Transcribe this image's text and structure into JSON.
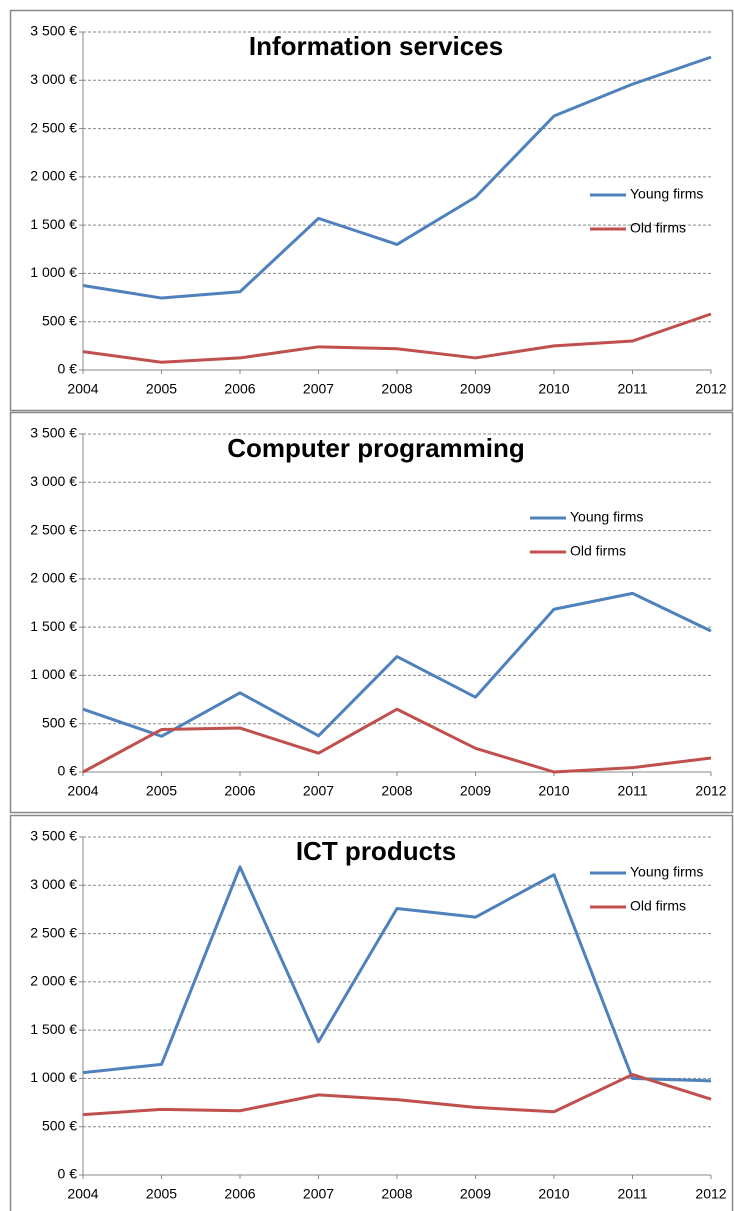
{
  "chart_data": [
    {
      "type": "line",
      "title": "Information services",
      "categories": [
        "2004",
        "2005",
        "2006",
        "2007",
        "2008",
        "2009",
        "2010",
        "2011",
        "2012"
      ],
      "series": [
        {
          "name": "Young firms",
          "color": "#4f81bd",
          "values": [
            875,
            745,
            810,
            1570,
            1300,
            1790,
            2630,
            2960,
            3240
          ]
        },
        {
          "name": "Old firms",
          "color": "#c0504d",
          "values": [
            190,
            80,
            125,
            240,
            220,
            125,
            250,
            300,
            580
          ]
        }
      ],
      "ylim": [
        0,
        3500
      ],
      "yticks": [
        {
          "value": 0,
          "label": "0 €"
        },
        {
          "value": 500,
          "label": "500 €"
        },
        {
          "value": 1000,
          "label": "1 000 €"
        },
        {
          "value": 1500,
          "label": "1 500 €"
        },
        {
          "value": 2000,
          "label": "2 000 €"
        },
        {
          "value": 2500,
          "label": "2 500 €"
        },
        {
          "value": 3000,
          "label": "3 000 €"
        },
        {
          "value": 3500,
          "label": "3 500 €"
        }
      ],
      "grid": true,
      "legend": "center right"
    },
    {
      "type": "line",
      "title": "Computer programming",
      "categories": [
        "2004",
        "2005",
        "2006",
        "2007",
        "2008",
        "2009",
        "2010",
        "2011",
        "2012"
      ],
      "series": [
        {
          "name": "Young firms",
          "color": "#4f81bd",
          "values": [
            650,
            370,
            820,
            375,
            1195,
            775,
            1685,
            1850,
            1460
          ]
        },
        {
          "name": "Old firms",
          "color": "#c0504d",
          "values": [
            0,
            440,
            455,
            195,
            650,
            245,
            0,
            45,
            145
          ]
        }
      ],
      "ylim": [
        0,
        3500
      ],
      "yticks": [
        {
          "value": 0,
          "label": "0 €"
        },
        {
          "value": 500,
          "label": "500 €"
        },
        {
          "value": 1000,
          "label": "1 000 €"
        },
        {
          "value": 1500,
          "label": "1 500 €"
        },
        {
          "value": 2000,
          "label": "2 000 €"
        },
        {
          "value": 2500,
          "label": "2 500 €"
        },
        {
          "value": 3000,
          "label": "3 000 €"
        },
        {
          "value": 3500,
          "label": "3 500 €"
        }
      ],
      "grid": true,
      "legend": "upper center right"
    },
    {
      "type": "line",
      "title": "ICT products",
      "categories": [
        "2004",
        "2005",
        "2006",
        "2007",
        "2008",
        "2009",
        "2010",
        "2011",
        "2012"
      ],
      "series": [
        {
          "name": "Young firms",
          "color": "#4f81bd",
          "values": [
            1060,
            1145,
            3190,
            1380,
            2760,
            2670,
            3110,
            1000,
            975
          ]
        },
        {
          "name": "Old firms",
          "color": "#c0504d",
          "values": [
            625,
            680,
            665,
            830,
            780,
            700,
            655,
            1040,
            785
          ]
        }
      ],
      "ylim": [
        0,
        3500
      ],
      "yticks": [
        {
          "value": 0,
          "label": "0 €"
        },
        {
          "value": 500,
          "label": "500 €"
        },
        {
          "value": 1000,
          "label": "1 000 €"
        },
        {
          "value": 1500,
          "label": "1 500 €"
        },
        {
          "value": 2000,
          "label": "2 000 €"
        },
        {
          "value": 2500,
          "label": "2 500 €"
        },
        {
          "value": 3000,
          "label": "3 000 €"
        },
        {
          "value": 3500,
          "label": "3 500 €"
        }
      ],
      "grid": true,
      "legend": "upper right"
    }
  ]
}
